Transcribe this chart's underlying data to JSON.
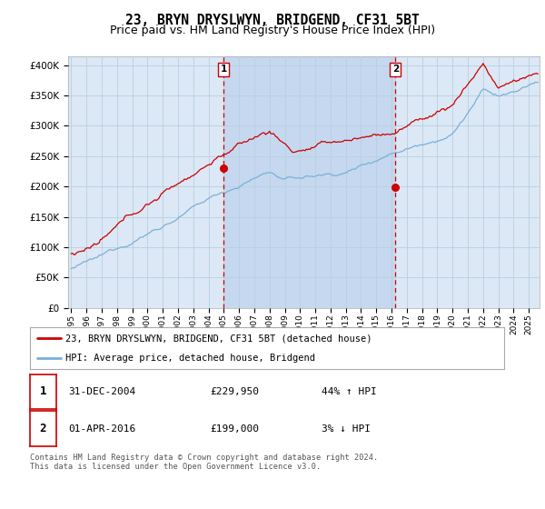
{
  "title": "23, BRYN DRYSLWYN, BRIDGEND, CF31 5BT",
  "subtitle": "Price paid vs. HM Land Registry's House Price Index (HPI)",
  "title_fontsize": 10.5,
  "subtitle_fontsize": 9,
  "ylabel_ticks": [
    "£0",
    "£50K",
    "£100K",
    "£150K",
    "£200K",
    "£250K",
    "£300K",
    "£350K",
    "£400K"
  ],
  "ytick_values": [
    0,
    50000,
    100000,
    150000,
    200000,
    250000,
    300000,
    350000,
    400000
  ],
  "ylim": [
    0,
    415000
  ],
  "xlim_start": 1994.8,
  "xlim_end": 2025.7,
  "bg_color": "#dce8f5",
  "shade_color": "#c5d8ef",
  "fig_bg_color": "#ffffff",
  "grid_color": "#b8cfe0",
  "hpi_color": "#7ab0d8",
  "price_color": "#cc0000",
  "marker1_date": 2005.0,
  "marker1_price": 229950,
  "marker2_date": 2016.25,
  "marker2_price": 199000,
  "vline_color": "#cc0000",
  "legend_entry1": "23, BRYN DRYSLWYN, BRIDGEND, CF31 5BT (detached house)",
  "legend_entry2": "HPI: Average price, detached house, Bridgend",
  "table_row1": [
    "1",
    "31-DEC-2004",
    "£229,950",
    "44% ↑ HPI"
  ],
  "table_row2": [
    "2",
    "01-APR-2016",
    "£199,000",
    "3% ↓ HPI"
  ],
  "footnote": "Contains HM Land Registry data © Crown copyright and database right 2024.\nThis data is licensed under the Open Government Licence v3.0.",
  "xtick_years": [
    1995,
    1996,
    1997,
    1998,
    1999,
    2000,
    2001,
    2002,
    2003,
    2004,
    2005,
    2006,
    2007,
    2008,
    2009,
    2010,
    2011,
    2012,
    2013,
    2014,
    2015,
    2016,
    2017,
    2018,
    2019,
    2020,
    2021,
    2022,
    2023,
    2024,
    2025
  ]
}
